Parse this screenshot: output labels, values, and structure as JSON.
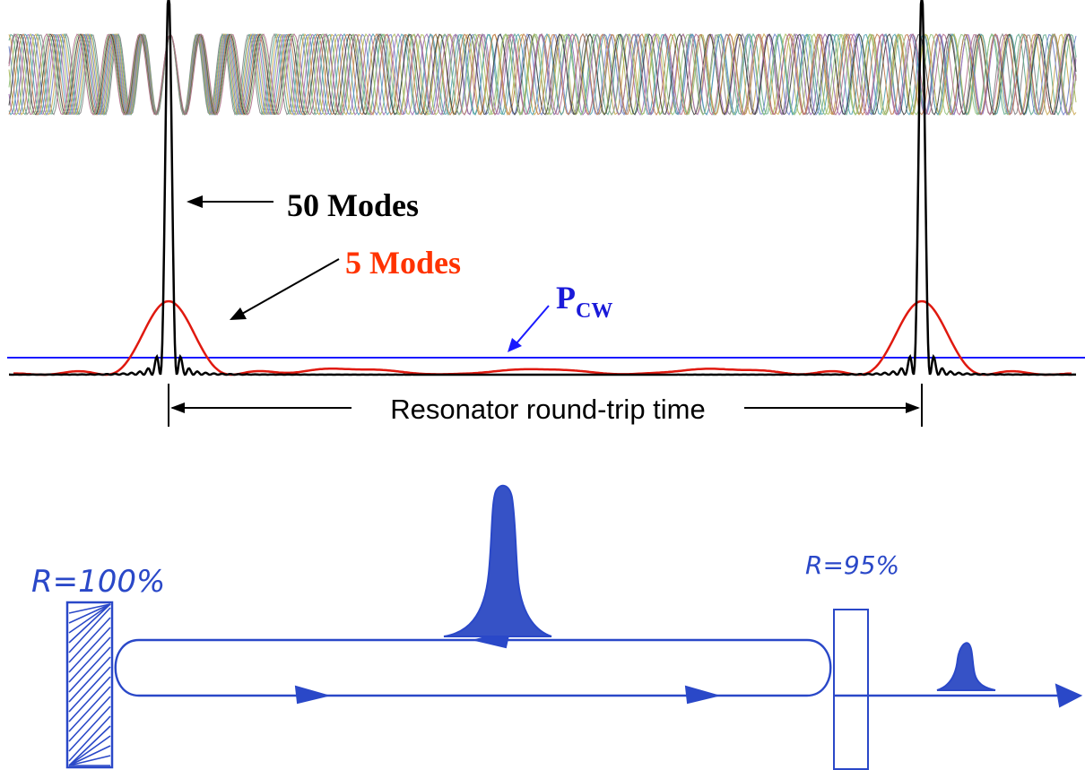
{
  "labels": {
    "modes50": "50 Modes",
    "modes5": "5 Modes",
    "pcw_main": "P",
    "pcw_sub": "CW",
    "roundtrip": "Resonator round-trip time",
    "mirror_left": "R=100%",
    "mirror_right": "R=95%"
  },
  "colors": {
    "black": "#000000",
    "red": "#e0190f",
    "blue": "#1a1aff",
    "pen_blue": "#2a48c8",
    "text_red": "#ff3300",
    "text_blue": "#1a1ad9"
  },
  "waves": {
    "count": 11,
    "colors": [
      "#7f7f7f",
      "#5aa58a",
      "#c9a64d",
      "#6b7fc9",
      "#a8b858",
      "#9a6ab3",
      "#4d9fb0",
      "#bf7a4a",
      "#3c3c3c",
      "#8fbf7a",
      "#b06a8a"
    ]
  }
}
